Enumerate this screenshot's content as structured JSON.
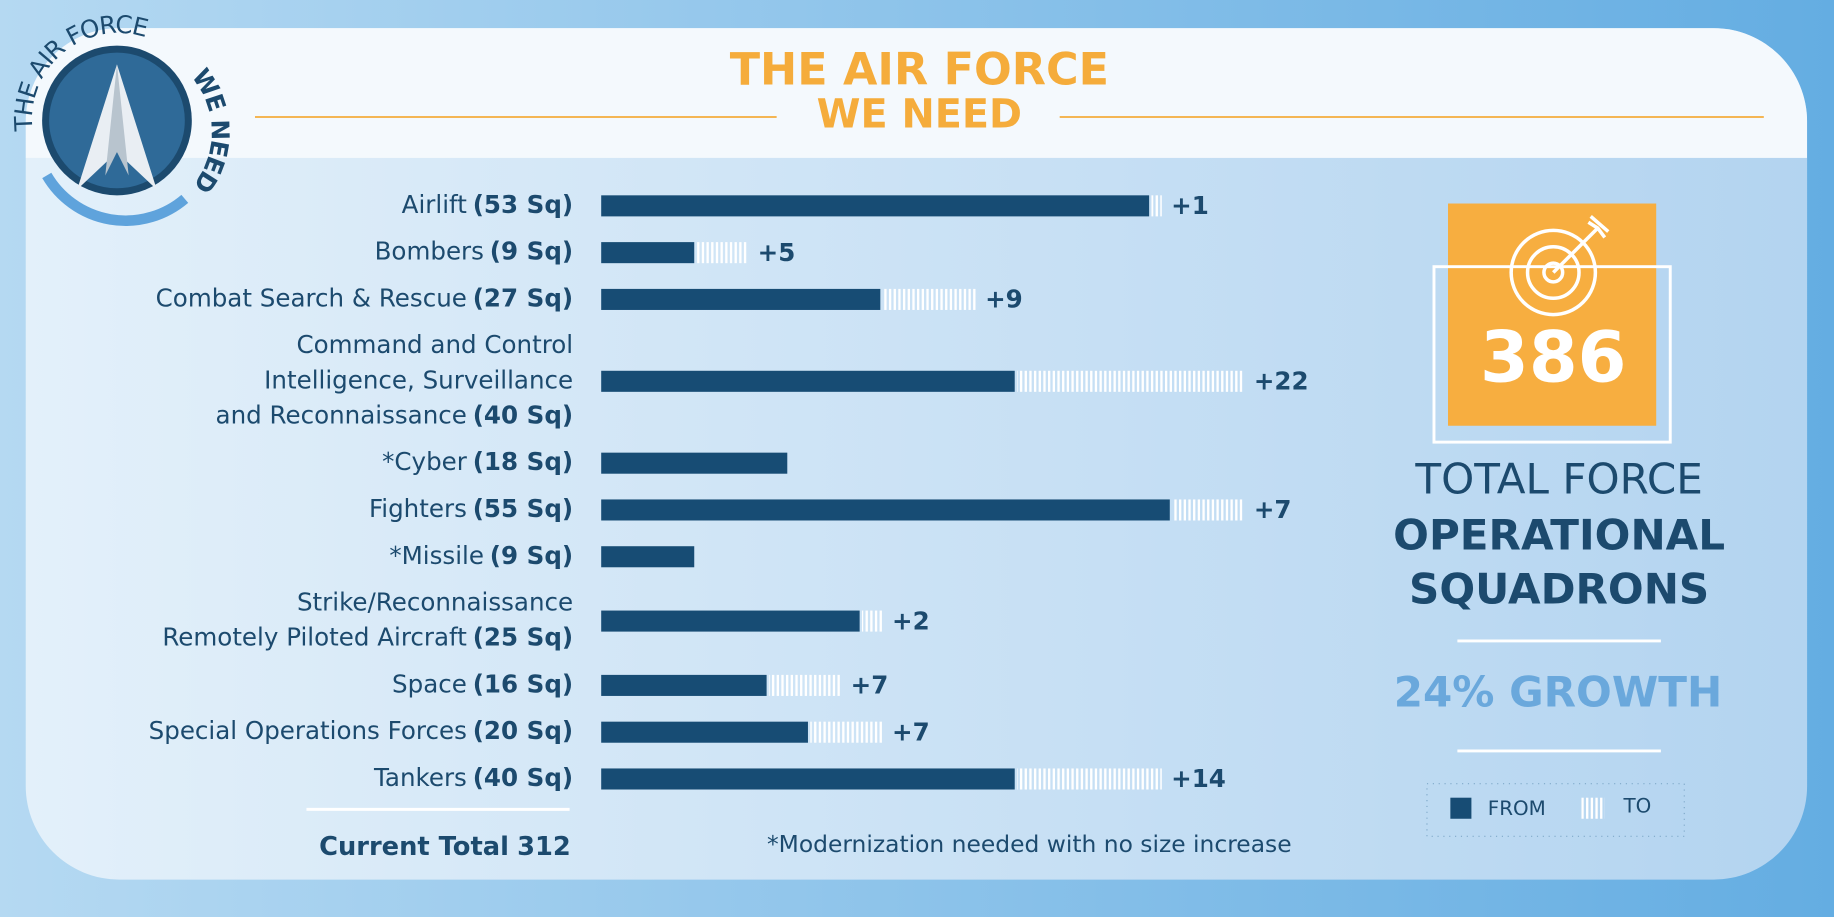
{
  "header": {
    "title_line1": "THE AIR FORCE",
    "title_line2": "WE NEED"
  },
  "logo": {
    "arc_text": "THE AIR FORCE",
    "bold_text": "WE NEED"
  },
  "chart_data": {
    "type": "bar",
    "orientation": "horizontal",
    "stacked": true,
    "categories": [
      [
        "Airlift"
      ],
      [
        "Bombers"
      ],
      [
        "Combat Search & Rescue"
      ],
      [
        "Command and Control",
        "Intelligence, Surveillance",
        "and Reconnaissance"
      ],
      [
        "*Cyber"
      ],
      [
        "Fighters"
      ],
      [
        "*Missile"
      ],
      [
        "Strike/Reconnaissance",
        "Remotely Piloted Aircraft"
      ],
      [
        "Space"
      ],
      [
        "Special Operations Forces"
      ],
      [
        "Tankers"
      ]
    ],
    "series": [
      {
        "name": "FROM",
        "color": "#174c74",
        "values": [
          53,
          9,
          27,
          40,
          18,
          55,
          9,
          25,
          16,
          20,
          40
        ],
        "value_labels": [
          "(53 Sq)",
          "(9 Sq)",
          "(27 Sq)",
          "(40 Sq)",
          "(18 Sq)",
          "(55 Sq)",
          "(9 Sq)",
          "(25 Sq)",
          "(16 Sq)",
          "(20 Sq)",
          "(40 Sq)"
        ]
      },
      {
        "name": "TO",
        "color": "#ffffff",
        "values": [
          1,
          5,
          9,
          22,
          null,
          7,
          null,
          2,
          7,
          7,
          14
        ],
        "value_labels": [
          "+1",
          "+5",
          "+9",
          "+22",
          null,
          "+7",
          null,
          "+2",
          "+7",
          "+7",
          "+14"
        ]
      }
    ],
    "footnote": "*Modernization needed with no size increase"
  },
  "summary": {
    "current_total_label": "Current Total",
    "current_total": 312,
    "target_total": 386,
    "target_line1": "TOTAL FORCE",
    "target_line2": "OPERATIONAL",
    "target_line3": "SQUADRONS",
    "growth": "24% GROWTH"
  }
}
